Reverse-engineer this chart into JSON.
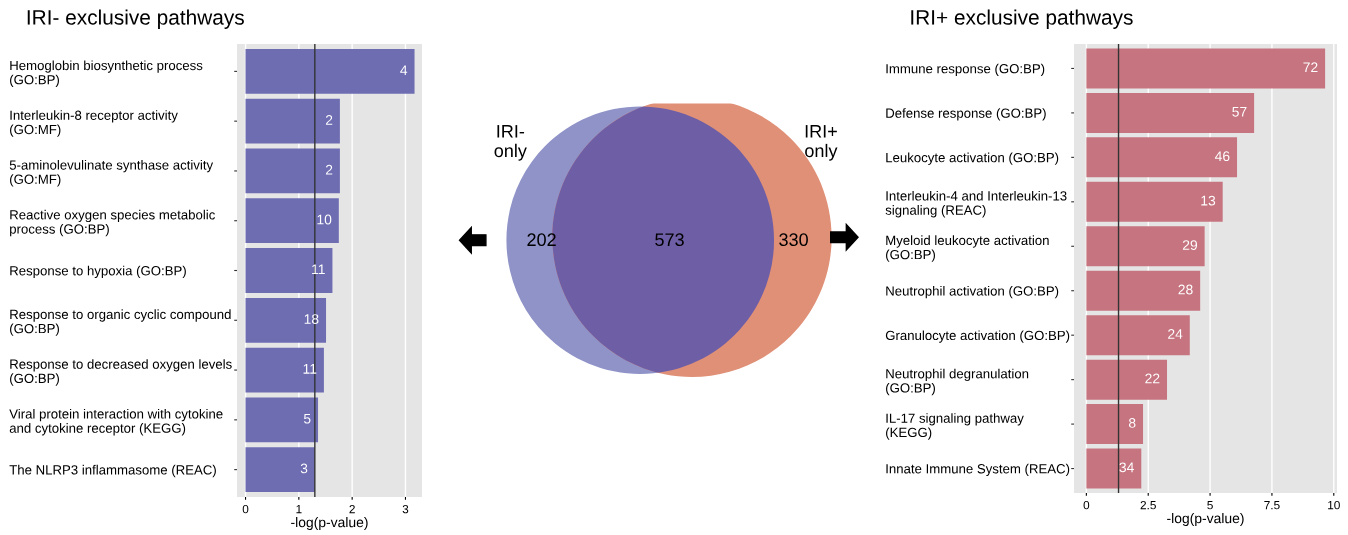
{
  "chart_data": [
    {
      "type": "bar",
      "orientation": "horizontal",
      "title": "IRI- exclusive pathways",
      "xlabel": "-log(p-value)",
      "categories": [
        "Hemoglobin biosynthetic process\n(GO:BP)",
        "Interleukin-8 receptor activity\n(GO:MF)",
        "5-aminolevulinate synthase activity\n(GO:MF)",
        "Reactive oxygen species metabolic\nprocess (GO:BP)",
        "Response to hypoxia (GO:BP)",
        "Response to organic cyclic compound\n(GO:BP)",
        "Response to decreased oxygen levels\n(GO:BP)",
        "Viral protein interaction with cytokine\nand cytokine receptor (KEGG)",
        "The NLRP3 inflammasome (REAC)"
      ],
      "values": [
        3.17,
        1.77,
        1.77,
        1.75,
        1.63,
        1.51,
        1.47,
        1.36,
        1.3
      ],
      "annotations": [
        {
          "text": "4",
          "x": 3.17,
          "y": "Hemoglobin biosynthetic process\n(GO:BP)"
        },
        {
          "text": "2",
          "x": 1.77,
          "y": "Interleukin-8 receptor activity\n(GO:MF)"
        },
        {
          "text": "2",
          "x": 1.77,
          "y": "5-aminolevulinate synthase activity\n(GO:MF)"
        },
        {
          "text": "10",
          "x": 1.75,
          "y": "Reactive oxygen species metabolic\nprocess (GO:BP)"
        },
        {
          "text": "11",
          "x": 1.63,
          "y": "Response to hypoxia (GO:BP)"
        },
        {
          "text": "18",
          "x": 1.51,
          "y": "Response to organic cyclic compound\n(GO:BP)"
        },
        {
          "text": "11",
          "x": 1.47,
          "y": "Response to decreased oxygen levels\n(GO:BP)"
        },
        {
          "text": "5",
          "x": 1.36,
          "y": "Viral protein interaction with cytokine\nand cytokine receptor (KEGG)"
        },
        {
          "text": "3",
          "x": 1.3,
          "y": "The NLRP3 inflammasome (REAC)"
        }
      ],
      "color": "#6e6db2",
      "xlim": [
        -0.16,
        3.31
      ],
      "xticks": [
        0,
        1,
        2,
        3
      ],
      "grid": "x",
      "ref_lines": [
        {
          "axis": "x",
          "value": 1.3,
          "color": "#333333"
        }
      ]
    },
    {
      "type": "other",
      "categories": [
        "IRI-\nonly",
        null,
        "IRI+\nonly"
      ],
      "values": [
        202,
        573,
        330
      ],
      "data_labels": true,
      "colors": [
        "#8f93c8",
        "#6e5ea6",
        "#e09077"
      ]
    },
    {
      "type": "bar",
      "orientation": "horizontal",
      "title": "IRI+ exclusive pathways",
      "xlabel": "-log(p-value)",
      "categories": [
        "Immune response (GO:BP)",
        "Defense response (GO:BP)",
        "Leukocyte activation (GO:BP)",
        "Interleukin-4 and Interleukin-13\nsignaling (REAC)",
        "Myeloid leukocyte activation\n(GO:BP)",
        "Neutrophil activation (GO:BP)",
        "Granulocyte activation (GO:BP)",
        "Neutrophil degranulation\n(GO:BP)",
        "IL-17 signaling pathway\n(KEGG)",
        "Innate Immune System (REAC)"
      ],
      "values": [
        9.65,
        6.78,
        6.09,
        5.51,
        4.78,
        4.6,
        4.18,
        3.26,
        2.29,
        2.22
      ],
      "annotations": [
        {
          "text": "72",
          "x": 9.65,
          "y": "Immune response (GO:BP)"
        },
        {
          "text": "57",
          "x": 6.78,
          "y": "Defense response (GO:BP)"
        },
        {
          "text": "46",
          "x": 6.09,
          "y": "Leukocyte activation (GO:BP)"
        },
        {
          "text": "13",
          "x": 5.51,
          "y": "Interleukin-4 and Interleukin-13\nsignaling (REAC)"
        },
        {
          "text": "29",
          "x": 4.78,
          "y": "Myeloid leukocyte activation\n(GO:BP)"
        },
        {
          "text": "28",
          "x": 4.6,
          "y": "Neutrophil activation (GO:BP)"
        },
        {
          "text": "24",
          "x": 4.18,
          "y": "Granulocyte activation (GO:BP)"
        },
        {
          "text": "22",
          "x": 3.26,
          "y": "Neutrophil degranulation\n(GO:BP)"
        },
        {
          "text": "8",
          "x": 2.29,
          "y": "IL-17 signaling pathway\n(KEGG)"
        },
        {
          "text": "34",
          "x": 2.22,
          "y": "Innate Immune System (REAC)"
        }
      ],
      "color": "#c67580",
      "xlim": [
        -0.5,
        10.13
      ],
      "xticks": [
        0,
        {
          "value": 2.5,
          "label": "2.5"
        },
        5,
        {
          "value": 7.5,
          "label": "7.5"
        },
        10
      ],
      "grid": "x",
      "ref_lines": [
        {
          "axis": "x",
          "value": 1.3,
          "color": "#333333"
        }
      ]
    }
  ]
}
